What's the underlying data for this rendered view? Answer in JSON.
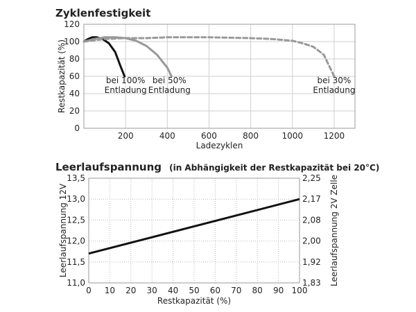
{
  "chart_data": [
    {
      "type": "line",
      "title": "Zyklenfestigkeit",
      "xlabel": "Ladezyklen",
      "ylabel": "Restkapazität (%)",
      "xlim": [
        0,
        1300
      ],
      "ylim": [
        0,
        120
      ],
      "xticks": [
        200,
        400,
        600,
        800,
        1000,
        1200
      ],
      "yticks": [
        0,
        20,
        40,
        60,
        80,
        100,
        120
      ],
      "grid": true,
      "series": [
        {
          "name": "bei 100% Entladung",
          "color": "#111111",
          "style": "solid",
          "x": [
            0,
            20,
            40,
            60,
            90,
            120,
            150,
            175,
            195
          ],
          "y": [
            100,
            103,
            105,
            105,
            103,
            98,
            88,
            72,
            60
          ]
        },
        {
          "name": "bei 50% Entladung",
          "color": "#999999",
          "style": "solid",
          "x": [
            0,
            50,
            100,
            150,
            200,
            250,
            300,
            350,
            400,
            420
          ],
          "y": [
            100,
            103,
            105,
            105,
            104,
            101,
            95,
            85,
            70,
            60
          ]
        },
        {
          "name": "bei 30% Entladung",
          "color": "#999999",
          "style": "dashed",
          "x": [
            0,
            100,
            200,
            300,
            400,
            500,
            600,
            700,
            800,
            900,
            1000,
            1050,
            1100,
            1150,
            1200
          ],
          "y": [
            100,
            103,
            104,
            104,
            105,
            105,
            105,
            104.5,
            104,
            103,
            101,
            98,
            94,
            85,
            60
          ]
        }
      ],
      "annotations": [
        {
          "lines": [
            "bei 100%",
            "Entladung"
          ],
          "x": 200,
          "y": 52
        },
        {
          "lines": [
            "bei 50%",
            "Entladung"
          ],
          "x": 410,
          "y": 52
        },
        {
          "lines": [
            "bei 30%",
            "Entladung"
          ],
          "x": 1200,
          "y": 52
        }
      ]
    },
    {
      "type": "line",
      "title": "Leerlaufspannung",
      "subtitle": "(in Abhängigkeit der Restkapazität bei 20°C)",
      "xlabel": "Restkapazität (%)",
      "ylabel": "Leerlaufspannung 12V",
      "ylabel_right": "Leerlaufspannung 2V Zelle",
      "xlim": [
        0,
        100
      ],
      "ylim": [
        11.0,
        13.5
      ],
      "xticks": [
        0,
        10,
        20,
        30,
        40,
        50,
        60,
        70,
        80,
        90,
        100
      ],
      "yticks": [
        11.0,
        11.5,
        12.0,
        12.5,
        13.0,
        13.5
      ],
      "ytick_labels": [
        "11,0",
        "11,5",
        "12,0",
        "12,5",
        "13,0",
        "13,5"
      ],
      "y2ticks_labels": [
        "1,83",
        "1,92",
        "2,00",
        "2,08",
        "2,17",
        "2,25"
      ],
      "grid": true,
      "grid_style": "dotted",
      "series": [
        {
          "color": "#111111",
          "style": "solid",
          "x": [
            0,
            100
          ],
          "y": [
            11.7,
            13.0
          ]
        }
      ]
    }
  ]
}
